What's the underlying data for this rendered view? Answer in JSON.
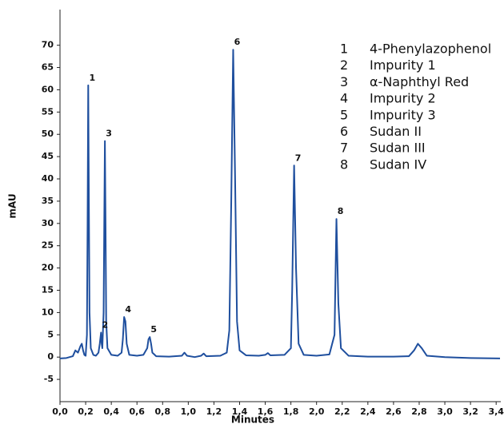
{
  "chart_data": {
    "type": "line",
    "x_label": "Minutes",
    "y_label": "mAU",
    "color": "#1f4f9e",
    "x": [
      0.0,
      0.05,
      0.1,
      0.12,
      0.14,
      0.16,
      0.17,
      0.18,
      0.19,
      0.2,
      0.21,
      0.215,
      0.22,
      0.225,
      0.23,
      0.24,
      0.26,
      0.28,
      0.3,
      0.31,
      0.32,
      0.325,
      0.33,
      0.34,
      0.345,
      0.35,
      0.355,
      0.36,
      0.37,
      0.4,
      0.45,
      0.48,
      0.49,
      0.5,
      0.51,
      0.52,
      0.54,
      0.6,
      0.65,
      0.68,
      0.69,
      0.7,
      0.71,
      0.72,
      0.75,
      0.85,
      0.95,
      0.97,
      0.99,
      1.05,
      1.1,
      1.12,
      1.14,
      1.25,
      1.3,
      1.32,
      1.335,
      1.35,
      1.365,
      1.38,
      1.4,
      1.45,
      1.55,
      1.6,
      1.62,
      1.64,
      1.75,
      1.8,
      1.81,
      1.825,
      1.84,
      1.86,
      1.9,
      2.0,
      2.1,
      2.14,
      2.155,
      2.17,
      2.19,
      2.25,
      2.4,
      2.6,
      2.72,
      2.76,
      2.79,
      2.82,
      2.86,
      3.0,
      3.2,
      3.43
    ],
    "values": [
      -0.3,
      -0.2,
      0.2,
      1.5,
      1.0,
      2.5,
      3.0,
      1.5,
      0.5,
      0.3,
      5,
      30,
      61,
      35,
      10,
      2,
      0.5,
      0.3,
      1,
      3,
      5.5,
      3,
      2,
      10,
      30,
      48.5,
      30,
      8,
      2,
      0.5,
      0.3,
      1,
      4,
      9,
      8,
      3,
      0.5,
      0.3,
      0.5,
      2,
      4,
      4.5,
      3,
      1,
      0.2,
      0.1,
      0.3,
      1,
      0.3,
      0.0,
      0.3,
      0.8,
      0.2,
      0.3,
      1,
      6,
      35,
      69,
      40,
      8,
      1.5,
      0.4,
      0.3,
      0.5,
      0.9,
      0.4,
      0.5,
      2,
      15,
      43,
      20,
      3,
      0.5,
      0.3,
      0.6,
      5,
      31,
      12,
      2,
      0.3,
      0.1,
      0.1,
      0.2,
      1.5,
      3,
      2,
      0.3,
      0.0,
      -0.2,
      -0.3
    ],
    "xlim": [
      0,
      3.43
    ],
    "ylim": [
      -10,
      78
    ],
    "xticks": [
      {
        "value": 0,
        "label": "0,0"
      },
      {
        "value": 0.2,
        "label": "0,2"
      },
      {
        "value": 0.4,
        "label": "0,4"
      },
      {
        "value": 0.6,
        "label": "0,6"
      },
      {
        "value": 0.8,
        "label": "0,8"
      },
      {
        "value": 1.0,
        "label": "1,0"
      },
      {
        "value": 1.2,
        "label": "1,2"
      },
      {
        "value": 1.4,
        "label": "1,4"
      },
      {
        "value": 1.6,
        "label": "1,6"
      },
      {
        "value": 1.8,
        "label": "1,8"
      },
      {
        "value": 2.0,
        "label": "2,0"
      },
      {
        "value": 2.2,
        "label": "2,2"
      },
      {
        "value": 2.4,
        "label": "2,4"
      },
      {
        "value": 2.6,
        "label": "2,6"
      },
      {
        "value": 2.8,
        "label": "2,8"
      },
      {
        "value": 3.0,
        "label": "3,0"
      },
      {
        "value": 3.2,
        "label": "3,2"
      },
      {
        "value": 3.4,
        "label": "3,4"
      }
    ],
    "yticks": [
      -5,
      0,
      5,
      10,
      15,
      20,
      25,
      30,
      35,
      40,
      45,
      50,
      55,
      60,
      65,
      70
    ],
    "annotations": [
      {
        "text": "1",
        "x": 0.22,
        "y": 61
      },
      {
        "text": "2",
        "x": 0.32,
        "y": 5.5
      },
      {
        "text": "3",
        "x": 0.35,
        "y": 48.5
      },
      {
        "text": "4",
        "x": 0.5,
        "y": 9
      },
      {
        "text": "5",
        "x": 0.7,
        "y": 4.5
      },
      {
        "text": "6",
        "x": 1.35,
        "y": 69
      },
      {
        "text": "7",
        "x": 1.825,
        "y": 43
      },
      {
        "text": "8",
        "x": 2.155,
        "y": 31
      }
    ],
    "legend_items": [
      {
        "number": "1",
        "name": "4-Phenylazophenol"
      },
      {
        "number": "2",
        "name": "Impurity 1"
      },
      {
        "number": "3",
        "name": "α-Naphthyl Red"
      },
      {
        "number": "4",
        "name": "Impurity 2"
      },
      {
        "number": "5",
        "name": "Impurity 3"
      },
      {
        "number": "6",
        "name": "Sudan II"
      },
      {
        "number": "7",
        "name": "Sudan III"
      },
      {
        "number": "8",
        "name": "Sudan IV"
      }
    ]
  }
}
